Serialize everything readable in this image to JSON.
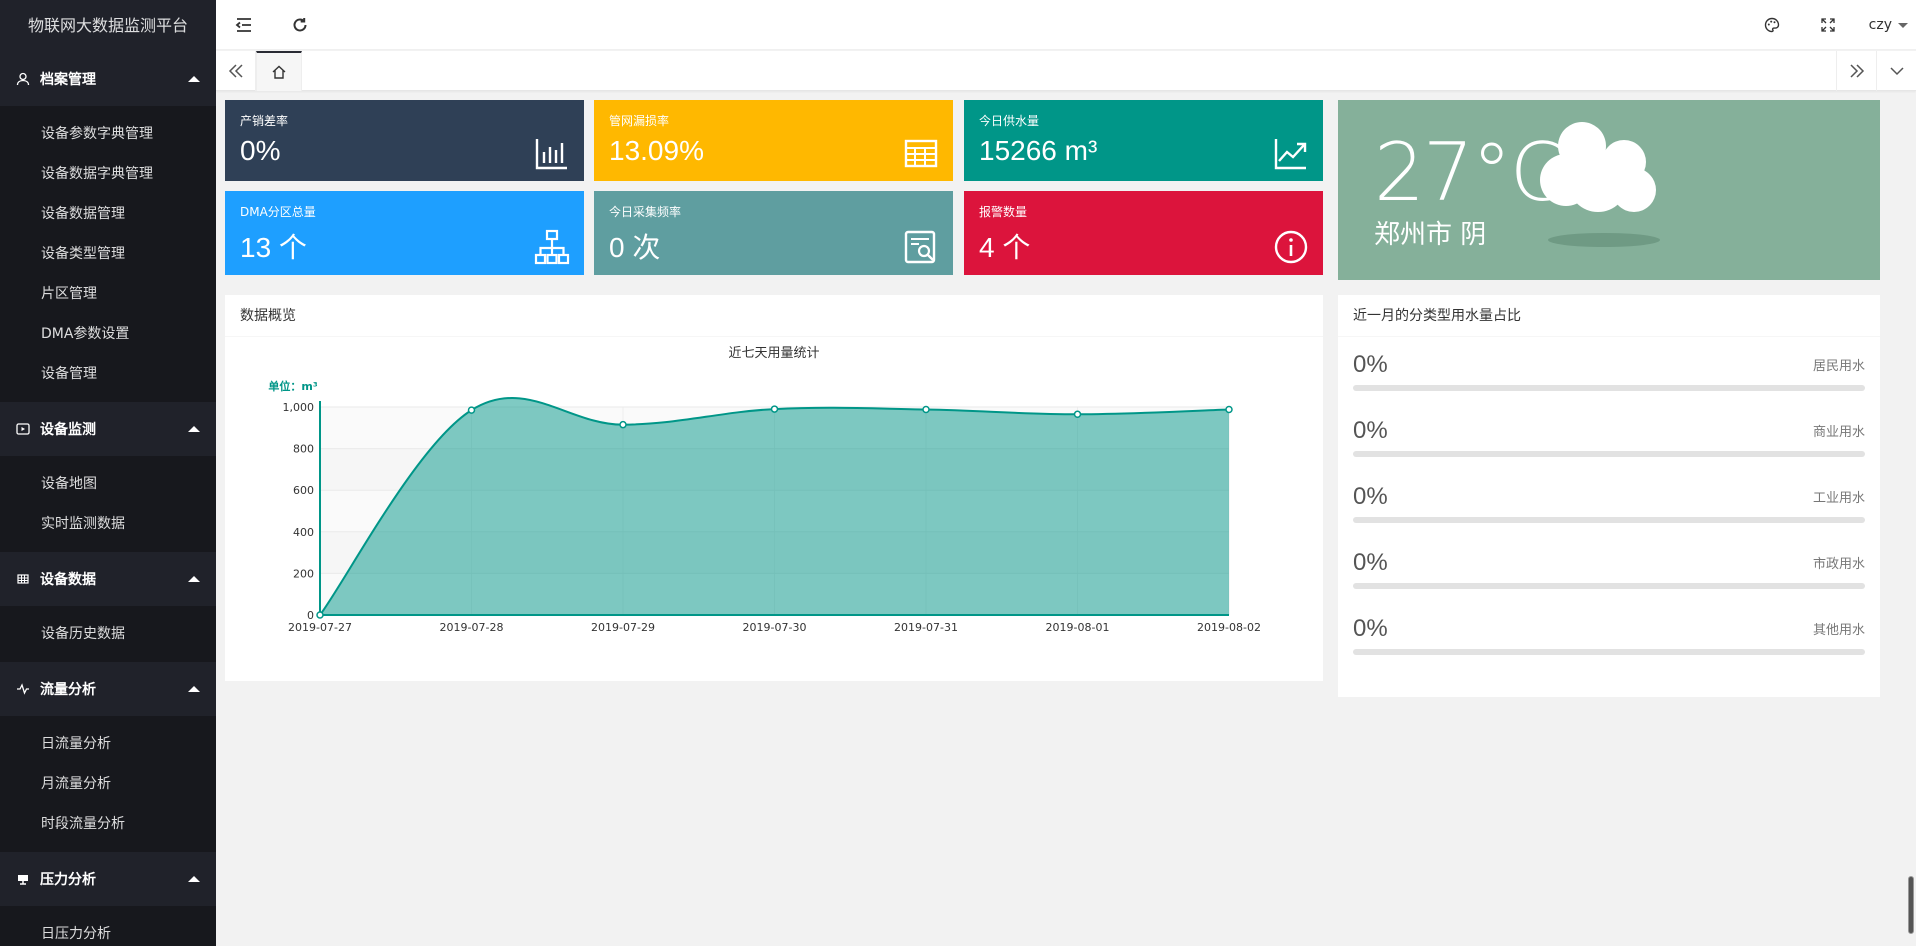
{
  "app": {
    "title": "物联网大数据监测平台"
  },
  "sidebar": {
    "groups": [
      {
        "title": "档案管理",
        "icon": "user-icon",
        "items": [
          "设备参数字典管理",
          "设备数据字典管理",
          "设备数据管理",
          "设备类型管理",
          "片区管理",
          "DMA参数设置",
          "设备管理"
        ]
      },
      {
        "title": "设备监测",
        "icon": "play-icon",
        "items": [
          "设备地图",
          "实时监测数据"
        ]
      },
      {
        "title": "设备数据",
        "icon": "table-icon",
        "items": [
          "设备历史数据"
        ]
      },
      {
        "title": "流量分析",
        "icon": "wave-icon",
        "items": [
          "日流量分析",
          "月流量分析",
          "时段流量分析"
        ]
      },
      {
        "title": "压力分析",
        "icon": "monitor-icon",
        "items": [
          "日压力分析"
        ]
      }
    ]
  },
  "header": {
    "user": "czy"
  },
  "cards": [
    {
      "title": "产销差率",
      "value": "0%",
      "color": "#2f4056",
      "icon": "bar-chart-icon"
    },
    {
      "title": "管网漏损率",
      "value": "13.09%",
      "color": "#ffb800",
      "icon": "table-grid-icon"
    },
    {
      "title": "今日供水量",
      "value": "15266 m³",
      "color": "#009688",
      "icon": "line-chart-icon"
    },
    {
      "title": "DMA分区总量",
      "value": "13 个",
      "color": "#1e9fff",
      "icon": "org-chart-icon"
    },
    {
      "title": "今日采集频率",
      "value": "0 次",
      "color": "#5f9ea0",
      "icon": "search-doc-icon"
    },
    {
      "title": "报警数量",
      "value": "4 个",
      "color": "#dc143c",
      "icon": "info-icon"
    }
  ],
  "overview": {
    "title": "数据概览"
  },
  "chart_data": {
    "type": "area",
    "title": "近七天用量统计",
    "ylabel": "单位：m³",
    "x": [
      "2019-07-27",
      "2019-07-28",
      "2019-07-29",
      "2019-07-30",
      "2019-07-31",
      "2019-08-01",
      "2019-08-02"
    ],
    "values": [
      0,
      985,
      915,
      990,
      988,
      965,
      988
    ],
    "yticks": [
      "0",
      "200",
      "400",
      "600",
      "800",
      "1,000"
    ],
    "ylim": [
      0,
      1000
    ],
    "grid": true,
    "color": "#009688"
  },
  "weather": {
    "temp": "27°C",
    "desc": "郑州市 阴"
  },
  "usage": {
    "title": "近一月的分类型用水量占比",
    "items": [
      {
        "label": "居民用水",
        "value": "0%",
        "fraction": 0
      },
      {
        "label": "商业用水",
        "value": "0%",
        "fraction": 0
      },
      {
        "label": "工业用水",
        "value": "0%",
        "fraction": 0
      },
      {
        "label": "市政用水",
        "value": "0%",
        "fraction": 0
      },
      {
        "label": "其他用水",
        "value": "0%",
        "fraction": 0
      }
    ]
  }
}
